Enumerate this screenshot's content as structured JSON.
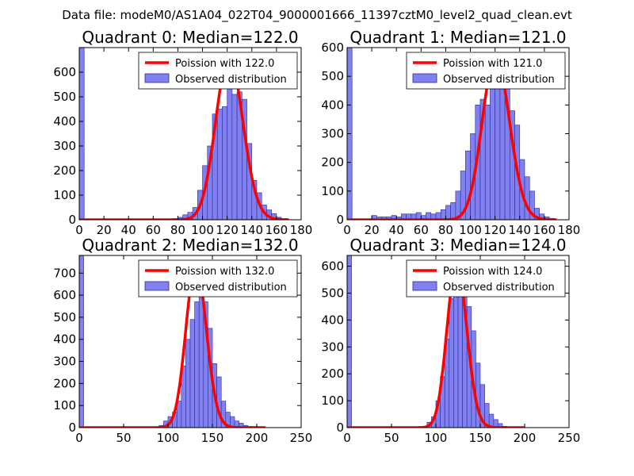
{
  "suptitle": "Data file: modeM0/AS1A04_022T04_9000001666_11397cztM0_level2_quad_clean.evt",
  "colors": {
    "hist_fill": "#8080f0",
    "hist_edge": "#2a2a9a",
    "fit_line": "#ff0000"
  },
  "chart_data": [
    {
      "type": "bar",
      "title": "Quadrant 0: Median=122.0",
      "xlim": [
        0,
        180
      ],
      "ylim": [
        0,
        700
      ],
      "xticks": [
        0,
        20,
        40,
        60,
        80,
        100,
        120,
        140,
        160,
        180
      ],
      "yticks": [
        0,
        100,
        200,
        300,
        400,
        500,
        600
      ],
      "legend": {
        "fit": "Poission with 122.0",
        "hist": "Observed distribution",
        "position": "top-right"
      },
      "bin_width": 4,
      "bins": [
        [
          0,
          700
        ],
        [
          76,
          5
        ],
        [
          80,
          10
        ],
        [
          84,
          20
        ],
        [
          88,
          30
        ],
        [
          92,
          50
        ],
        [
          96,
          120
        ],
        [
          100,
          220
        ],
        [
          104,
          300
        ],
        [
          108,
          430
        ],
        [
          112,
          450
        ],
        [
          116,
          460
        ],
        [
          120,
          560
        ],
        [
          124,
          510
        ],
        [
          128,
          520
        ],
        [
          132,
          490
        ],
        [
          136,
          310
        ],
        [
          140,
          160
        ],
        [
          144,
          110
        ],
        [
          148,
          60
        ],
        [
          152,
          40
        ],
        [
          156,
          25
        ],
        [
          160,
          10
        ],
        [
          164,
          5
        ]
      ],
      "fit": {
        "mean": 122.0,
        "peak": 660,
        "x_range": [
          0,
          170
        ]
      }
    },
    {
      "type": "bar",
      "title": "Quadrant 1: Median=121.0",
      "xlim": [
        0,
        180
      ],
      "ylim": [
        0,
        600
      ],
      "xticks": [
        0,
        20,
        40,
        60,
        80,
        100,
        120,
        140,
        160,
        180
      ],
      "yticks": [
        0,
        100,
        200,
        300,
        400,
        500,
        600
      ],
      "legend": {
        "fit": "Poission with 121.0",
        "hist": "Observed distribution",
        "position": "top-right"
      },
      "bin_width": 4,
      "bins": [
        [
          0,
          600
        ],
        [
          20,
          15
        ],
        [
          24,
          10
        ],
        [
          28,
          10
        ],
        [
          32,
          10
        ],
        [
          36,
          15
        ],
        [
          40,
          10
        ],
        [
          44,
          20
        ],
        [
          48,
          20
        ],
        [
          52,
          20
        ],
        [
          56,
          25
        ],
        [
          60,
          15
        ],
        [
          64,
          25
        ],
        [
          68,
          20
        ],
        [
          72,
          25
        ],
        [
          76,
          35
        ],
        [
          80,
          50
        ],
        [
          84,
          60
        ],
        [
          88,
          100
        ],
        [
          92,
          170
        ],
        [
          96,
          240
        ],
        [
          100,
          300
        ],
        [
          104,
          400
        ],
        [
          108,
          420
        ],
        [
          112,
          400
        ],
        [
          116,
          490
        ],
        [
          120,
          540
        ],
        [
          124,
          460
        ],
        [
          128,
          480
        ],
        [
          132,
          380
        ],
        [
          136,
          330
        ],
        [
          140,
          210
        ],
        [
          144,
          150
        ],
        [
          148,
          100
        ],
        [
          152,
          40
        ],
        [
          156,
          20
        ],
        [
          160,
          10
        ],
        [
          164,
          5
        ]
      ],
      "fit": {
        "mean": 121.0,
        "peak": 570,
        "x_range": [
          0,
          170
        ]
      }
    },
    {
      "type": "bar",
      "title": "Quadrant 2: Median=132.0",
      "xlim": [
        0,
        250
      ],
      "ylim": [
        0,
        780
      ],
      "xticks": [
        0,
        50,
        100,
        150,
        200,
        250
      ],
      "yticks": [
        0,
        100,
        200,
        300,
        400,
        500,
        600,
        700
      ],
      "legend": {
        "fit": "Poission with 132.0",
        "hist": "Observed distribution",
        "position": "top-right"
      },
      "bin_width": 5,
      "bins": [
        [
          0,
          780
        ],
        [
          90,
          10
        ],
        [
          95,
          30
        ],
        [
          100,
          50
        ],
        [
          105,
          70
        ],
        [
          110,
          120
        ],
        [
          115,
          280
        ],
        [
          120,
          400
        ],
        [
          125,
          490
        ],
        [
          130,
          570
        ],
        [
          135,
          630
        ],
        [
          140,
          570
        ],
        [
          145,
          450
        ],
        [
          150,
          290
        ],
        [
          155,
          230
        ],
        [
          160,
          120
        ],
        [
          165,
          70
        ],
        [
          170,
          50
        ],
        [
          175,
          30
        ],
        [
          180,
          20
        ],
        [
          185,
          10
        ],
        [
          190,
          5
        ],
        [
          195,
          5
        ]
      ],
      "fit": {
        "mean": 132.0,
        "peak": 740,
        "x_range": [
          0,
          210
        ]
      }
    },
    {
      "type": "bar",
      "title": "Quadrant 3: Median=124.0",
      "xlim": [
        0,
        250
      ],
      "ylim": [
        0,
        640
      ],
      "xticks": [
        0,
        50,
        100,
        150,
        200,
        250
      ],
      "yticks": [
        0,
        100,
        200,
        300,
        400,
        500,
        600
      ],
      "legend": {
        "fit": "Poission with 124.0",
        "hist": "Observed distribution",
        "position": "top-right"
      },
      "bin_width": 5,
      "bins": [
        [
          0,
          640
        ],
        [
          85,
          5
        ],
        [
          90,
          20
        ],
        [
          95,
          40
        ],
        [
          100,
          100
        ],
        [
          105,
          190
        ],
        [
          110,
          330
        ],
        [
          115,
          480
        ],
        [
          120,
          510
        ],
        [
          125,
          610
        ],
        [
          130,
          530
        ],
        [
          135,
          450
        ],
        [
          140,
          360
        ],
        [
          145,
          240
        ],
        [
          150,
          160
        ],
        [
          155,
          90
        ],
        [
          160,
          50
        ],
        [
          165,
          30
        ],
        [
          170,
          15
        ],
        [
          175,
          5
        ]
      ],
      "fit": {
        "mean": 124.0,
        "peak": 610,
        "x_range": [
          0,
          200
        ]
      }
    }
  ]
}
